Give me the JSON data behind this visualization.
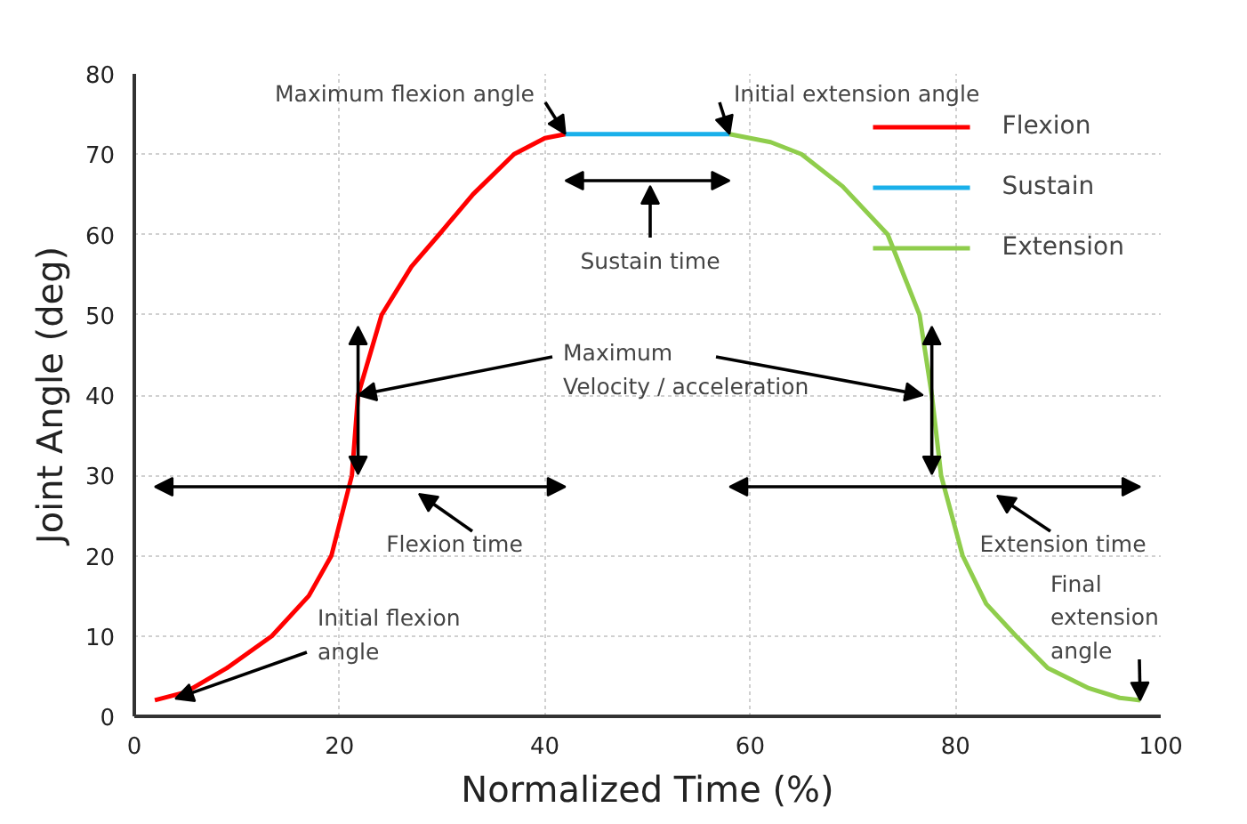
{
  "chart_data": {
    "type": "line",
    "xlabel": "Normalized Time (%)",
    "ylabel": "Joint Angle (deg)",
    "xlim": [
      0,
      100
    ],
    "ylim": [
      0,
      80
    ],
    "xticks": [
      0,
      20,
      40,
      60,
      80,
      100
    ],
    "yticks": [
      0,
      10,
      20,
      30,
      40,
      50,
      60,
      70,
      80
    ],
    "grid": true,
    "legend": "top right",
    "line_style": "solid",
    "series": [
      {
        "name": "Flexion",
        "color": "#ff0000",
        "x": [
          2,
          5,
          9,
          13.4,
          17,
          19.2,
          21.2,
          21.8,
          24.1,
          27,
          29.7,
          33,
          37,
          40,
          42
        ],
        "values": [
          2,
          3,
          6,
          10,
          15,
          20,
          30,
          40,
          50,
          56,
          60,
          65,
          70,
          72,
          72.5
        ]
      },
      {
        "name": "Sustain",
        "color": "#1ab0ea",
        "x": [
          42,
          58
        ],
        "values": [
          72.5,
          72.5
        ]
      },
      {
        "name": "Extension",
        "color": "#8fcd4c",
        "x": [
          58,
          62,
          65,
          69,
          73.4,
          76.5,
          77.7,
          78.6,
          80.7,
          83,
          85.9,
          89,
          93,
          96,
          98
        ],
        "values": [
          72.5,
          71.5,
          70,
          66,
          60,
          50,
          40,
          30,
          20,
          14,
          10,
          6,
          3.5,
          2.3,
          2
        ]
      }
    ],
    "annotations": [
      {
        "text": "Maximum flexion angle",
        "x": 42,
        "y": 72.5
      },
      {
        "text": "Initial extension angle",
        "x": 58,
        "y": 72.5
      },
      "Sustain time",
      {
        "text": "Maximum Velocity / acceleration",
        "x": 21.8,
        "y": 40
      },
      "Flexion time",
      "Extension time",
      {
        "text": "Initial flexion angle",
        "x": 4,
        "y": 2.2
      },
      {
        "text": "Final extension angle",
        "x": 98,
        "y": 2
      }
    ]
  }
}
